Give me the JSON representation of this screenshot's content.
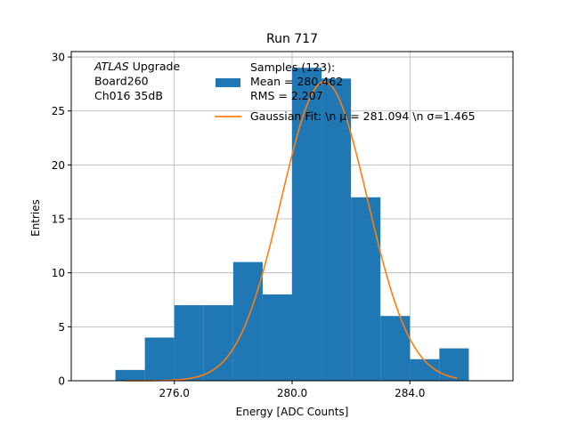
{
  "chart_data": {
    "type": "bar",
    "title": "Run 717",
    "xlabel": "Energy [ADC Counts]",
    "ylabel": "Entries",
    "xlim": [
      272.5,
      287.5
    ],
    "ylim": [
      0,
      30.5
    ],
    "xticks": [
      276.0,
      280.0,
      284.0
    ],
    "xtick_labels": [
      "276.0",
      "280.0",
      "284.0"
    ],
    "yticks": [
      0,
      5,
      10,
      15,
      20,
      25,
      30
    ],
    "ytick_labels": [
      "0",
      "5",
      "10",
      "15",
      "20",
      "25",
      "30"
    ],
    "grid": true,
    "bin_edges": [
      274.0,
      275.0,
      276.0,
      277.0,
      278.0,
      279.0,
      280.0,
      281.0,
      282.0,
      283.0,
      284.0,
      285.0,
      286.0
    ],
    "values": [
      1,
      4,
      7,
      7,
      11,
      8,
      29,
      28,
      17,
      6,
      2,
      3
    ],
    "fit": {
      "mu": 281.094,
      "sigma": 1.465,
      "peak": 27.7,
      "x_range": [
        274.3,
        285.6
      ]
    },
    "colors": {
      "bars": "#1f77b4",
      "fit": "#ff7f0e",
      "grid": "#b0b0b0"
    },
    "annotation": {
      "lines": [
        "ATLAS Upgrade",
        " Board260",
        " Ch016 35dB"
      ],
      "italic_word": "ATLAS"
    },
    "legend": {
      "placement": "top-right",
      "entries": [
        {
          "type": "patch",
          "lines": [
            "Samples (123):",
            " Mean = 280.462",
            " RMS = 2.207"
          ]
        },
        {
          "type": "line",
          "lines": [
            "Gaussian Fit: \\n μ = 281.094 \\n σ=1.465"
          ]
        }
      ]
    }
  }
}
